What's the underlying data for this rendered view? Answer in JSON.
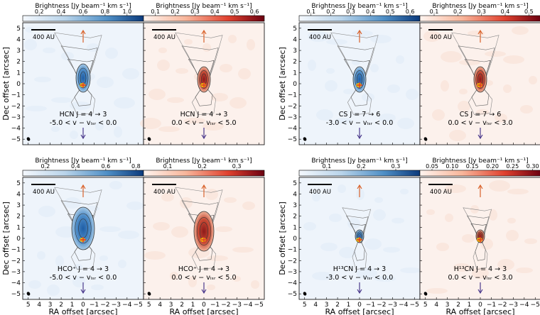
{
  "colorbar_title": "Brightness [Jy beam⁻¹ km s⁻¹]",
  "colors": {
    "blue": "#2b5f9e",
    "red": "#9b0d1a",
    "orange": "#d9622b",
    "purple": "#4b3a8c",
    "star": "#f5c400"
  },
  "scale_bar_label": "400 AU",
  "x_axis_label": "RA offset [arcsec]",
  "y_axis_label": "Dec offset [arcsec]",
  "x_tick_labels": [
    "5",
    "4",
    "3",
    "2",
    "1",
    "0",
    "−1",
    "−2",
    "−3",
    "−4",
    "−5"
  ],
  "y_tick_labels": [
    "5",
    "4",
    "3",
    "2",
    "1",
    "0",
    "−1",
    "−2",
    "−3",
    "−4",
    "−5"
  ],
  "chart_data": [
    {
      "type": "heatmap",
      "panel": "HCN blue",
      "line": "HCN J = 4 → 3",
      "velocity_range": "-5.0 < v − v_lsr < 0.0",
      "line_text": "HCN J = 4 → 3",
      "vel_text": "-5.0 < v − vₗₛᵣ < 0.0",
      "colormap": "Blues",
      "cbar_ticks": [
        "0.2",
        "0.4",
        "0.6",
        "0.8",
        "1.0"
      ],
      "cbar_range": [
        0.05,
        1.15
      ],
      "xlim": [
        5.5,
        -5.5
      ],
      "ylim": [
        -5.5,
        5.5
      ]
    },
    {
      "type": "heatmap",
      "panel": "HCN red",
      "line": "HCN J = 4 → 3",
      "velocity_range": "0.0 < v − v_lsr < 5.0",
      "line_text": "HCN J = 4 → 3",
      "vel_text": "0.0 < v − vₗₛᵣ < 5.0",
      "colormap": "Reds",
      "cbar_ticks": [
        "0.1",
        "0.2",
        "0.3",
        "0.4",
        "0.5",
        "0.6"
      ],
      "cbar_range": [
        0.04,
        0.65
      ],
      "xlim": [
        5.5,
        -5.5
      ],
      "ylim": [
        -5.5,
        5.5
      ]
    },
    {
      "type": "heatmap",
      "panel": "CS blue",
      "line": "CS J = 7 → 6",
      "velocity_range": "-3.0 < v − v_lsr < 0.0",
      "line_text": "CS J = 7 → 6",
      "vel_text": "-3.0 < v − vₗₛᵣ < 0.0",
      "colormap": "Blues",
      "cbar_ticks": [
        "0.1",
        "0.2",
        "0.3",
        "0.4",
        "0.5",
        "0.6"
      ],
      "cbar_range": [
        0.04,
        0.65
      ],
      "xlim": [
        5.5,
        -5.5
      ],
      "ylim": [
        -5.5,
        5.5
      ]
    },
    {
      "type": "heatmap",
      "panel": "CS red",
      "line": "CS J = 7 → 6",
      "velocity_range": "0.0 < v − v_lsr < 3.0",
      "line_text": "CS J = 7 → 6",
      "vel_text": "0.0 < v − vₗₛᵣ < 3.0",
      "colormap": "Reds",
      "cbar_ticks": [
        "0.1",
        "0.2",
        "0.3",
        "0.4",
        "0.5"
      ],
      "cbar_range": [
        0.04,
        0.55
      ],
      "xlim": [
        5.5,
        -5.5
      ],
      "ylim": [
        -5.5,
        5.5
      ]
    },
    {
      "type": "heatmap",
      "panel": "HCO+ blue",
      "line": "HCO+ J = 4 → 3",
      "velocity_range": "-5.0 < v − v_lsr < 0.0",
      "line_text": "HCO⁺ J = 4 → 3",
      "vel_text": "-5.0 < v − vₗₛᵣ < 0.0",
      "colormap": "Blues",
      "cbar_ticks": [
        "0.2",
        "0.4",
        "0.6",
        "0.8"
      ],
      "cbar_range": [
        0.05,
        0.85
      ],
      "xlim": [
        5.5,
        -5.5
      ],
      "ylim": [
        -5.5,
        5.5
      ]
    },
    {
      "type": "heatmap",
      "panel": "HCO+ red",
      "line": "HCO+ J = 4 → 3",
      "velocity_range": "0.0 < v − v_lsr < 5.0",
      "line_text": "HCO⁺ J = 4 → 3",
      "vel_text": "0.0 < v − vₗₛᵣ < 5.0",
      "colormap": "Reds",
      "cbar_ticks": [
        "0.1",
        "0.2",
        "0.3"
      ],
      "cbar_range": [
        0.03,
        0.38
      ],
      "xlim": [
        5.5,
        -5.5
      ],
      "ylim": [
        -5.5,
        5.5
      ]
    },
    {
      "type": "heatmap",
      "panel": "H13CN blue",
      "line": "H13CN J = 4 → 3",
      "velocity_range": "-3.0 < v − v_lsr < 0.0",
      "line_text": "H¹³CN J = 4 → 3",
      "vel_text": "-3.0 < v − vₗₛᵣ < 0.0",
      "colormap": "Blues",
      "cbar_ticks": [
        "0.1",
        "0.2",
        "0.3"
      ],
      "cbar_range": [
        0.02,
        0.37
      ],
      "xlim": [
        5.5,
        -5.5
      ],
      "ylim": [
        -5.5,
        5.5
      ]
    },
    {
      "type": "heatmap",
      "panel": "H13CN red",
      "line": "H13CN J = 4 → 3",
      "velocity_range": "0.0 < v − v_lsr < 3.0",
      "line_text": "H¹³CN J = 4 → 3",
      "vel_text": "0.0 < v − vₗₛᵣ < 3.0",
      "colormap": "Reds",
      "cbar_ticks": [
        "0.05",
        "0.10",
        "0.15",
        "0.20",
        "0.25",
        "0.30"
      ],
      "cbar_range": [
        0.02,
        0.32
      ],
      "xlim": [
        5.5,
        -5.5
      ],
      "ylim": [
        -5.5,
        5.5
      ]
    }
  ]
}
